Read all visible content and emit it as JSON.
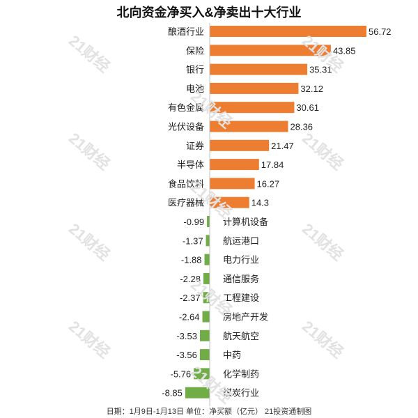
{
  "chart_data": {
    "type": "bar",
    "orientation": "horizontal",
    "title": "北向资金净买入&净卖出十大行业",
    "categories": [
      "酿酒行业",
      "保险",
      "银行",
      "电池",
      "有色金属",
      "光伏设备",
      "证券",
      "半导体",
      "食品饮料",
      "医疗器械",
      "计算机设备",
      "航运港口",
      "电力行业",
      "通信服务",
      "工程建设",
      "房地产开发",
      "航天航空",
      "中药",
      "化学制药",
      "煤炭行业"
    ],
    "series": [
      {
        "values": [
          56.72,
          43.85,
          35.31,
          32.12,
          30.61,
          28.36,
          21.47,
          17.84,
          16.27,
          14.3,
          -0.99,
          -1.37,
          -1.88,
          -2.28,
          -2.37,
          -2.64,
          -3.53,
          -3.56,
          -5.76,
          -8.85
        ]
      }
    ],
    "value_labels": [
      "56.72",
      "43.85",
      "35.31",
      "32.12",
      "30.61",
      "28.36",
      "21.47",
      "17.84",
      "16.27",
      "14.3",
      "-0.99",
      "-1.37",
      "-1.88",
      "-2.28",
      "-2.37",
      "-2.64",
      "-3.53",
      "-3.56",
      "-5.76",
      "-8.85"
    ],
    "colors": {
      "positive": "#ed7d31",
      "negative": "#70ad47"
    },
    "grid": false,
    "legend": "none"
  },
  "footnote": "日期：1月9日-1月13日 单位：净买额（亿元） 21投资通制图",
  "watermark": "21财经"
}
